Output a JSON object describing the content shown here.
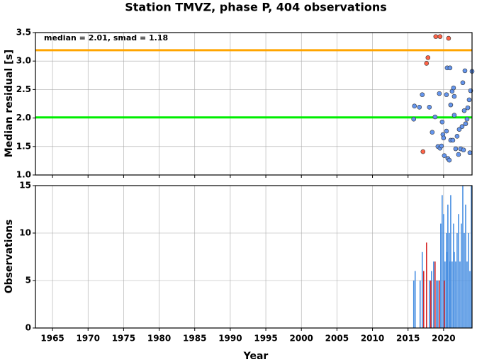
{
  "chart_data": [
    {
      "type": "scatter",
      "title": "Station TMVZ, phase P, 404 observations",
      "ylabel": "Median residual [s]",
      "annotation": "median = 2.01, smad = 1.18",
      "xlim": [
        1962.6,
        2024
      ],
      "ylim": [
        1.0,
        3.5
      ],
      "yticks": [
        {
          "value": 1.0,
          "label": "1.0"
        },
        1.5,
        {
          "value": 2.0,
          "label": "2.0"
        },
        2.5,
        {
          "value": 3.0,
          "label": "3.0"
        },
        3.5
      ],
      "grid": true,
      "reference_lines": [
        {
          "value": 2.01,
          "color": "#00ee00"
        },
        {
          "value": 3.19,
          "color": "#ffa500"
        }
      ],
      "series": [
        {
          "color": "#6495ed",
          "x": [
            2015.8,
            2015.9,
            2016.6,
            2017.0,
            2018.0,
            2018.4,
            2018.8,
            2019.2,
            2019.4,
            2019.5,
            2019.7,
            2019.8,
            2019.9,
            2020.0,
            2020.1,
            2020.4,
            2020.4,
            2020.5,
            2020.6,
            2020.8,
            2020.9,
            2021.0,
            2021.0,
            2021.2,
            2021.3,
            2021.4,
            2021.5,
            2021.5,
            2021.7,
            2021.9,
            2022.1,
            2022.2,
            2022.4,
            2022.6,
            2022.7,
            2022.8,
            2022.9,
            2023.0,
            2023.1,
            2023.3,
            2023.4,
            2023.6,
            2023.7,
            2023.8,
            2024.0
          ],
          "values": [
            1.98,
            2.21,
            2.19,
            2.41,
            2.19,
            1.75,
            2.02,
            1.5,
            2.43,
            1.47,
            1.51,
            1.93,
            1.71,
            1.65,
            1.34,
            1.77,
            2.41,
            2.88,
            1.29,
            1.26,
            2.88,
            2.23,
            1.61,
            2.47,
            1.61,
            2.53,
            2.38,
            2.05,
            1.46,
            1.68,
            1.36,
            1.8,
            1.46,
            1.85,
            2.62,
            1.44,
            2.13,
            2.83,
            1.9,
            1.98,
            2.18,
            2.32,
            1.39,
            2.48,
            2.82
          ]
        },
        {
          "color": "#ff6347",
          "x": [
            2017.1,
            2017.6,
            2017.8,
            2018.9,
            2019.5,
            2020.7
          ],
          "values": [
            1.41,
            2.96,
            3.06,
            3.43,
            3.43,
            3.4
          ]
        }
      ]
    },
    {
      "type": "bar",
      "xlabel": "Year",
      "ylabel": "Observations",
      "xlim": [
        1962.6,
        2024
      ],
      "xticks": [
        1965,
        1970,
        1975,
        1980,
        1985,
        1990,
        1995,
        2000,
        2005,
        2010,
        2015,
        2020
      ],
      "ylim": [
        0,
        15
      ],
      "yticks": [
        0,
        5,
        10,
        15
      ],
      "grid": true,
      "series": [
        {
          "color": "#4a90e2",
          "x": [
            2015.8,
            2016.0,
            2016.7,
            2017.0,
            2017.6,
            2018.0,
            2018.3,
            2018.6,
            2019.0,
            2019.2,
            2019.6,
            2019.8,
            2020.0,
            2020.2,
            2020.4,
            2020.5,
            2020.6,
            2020.8,
            2020.9,
            2021.0,
            2021.2,
            2021.4,
            2021.5,
            2021.7,
            2021.9,
            2022.1,
            2022.3,
            2022.5,
            2022.7,
            2022.9,
            2023.1,
            2023.3,
            2023.5,
            2023.7,
            2023.9
          ],
          "values": [
            5,
            6,
            5,
            8,
            5,
            5,
            6,
            7,
            5,
            5,
            11,
            14,
            12,
            7,
            10,
            8,
            13,
            10,
            7,
            14,
            7,
            11,
            8,
            7,
            10,
            12,
            7,
            11,
            15,
            10,
            13,
            7,
            10,
            6,
            15
          ]
        },
        {
          "color": "#d62728",
          "x": [
            2017.2,
            2017.6,
            2018.2,
            2018.8,
            2019.4,
            2020.1
          ],
          "values": [
            6,
            9,
            5,
            7,
            5,
            5
          ]
        }
      ]
    }
  ]
}
